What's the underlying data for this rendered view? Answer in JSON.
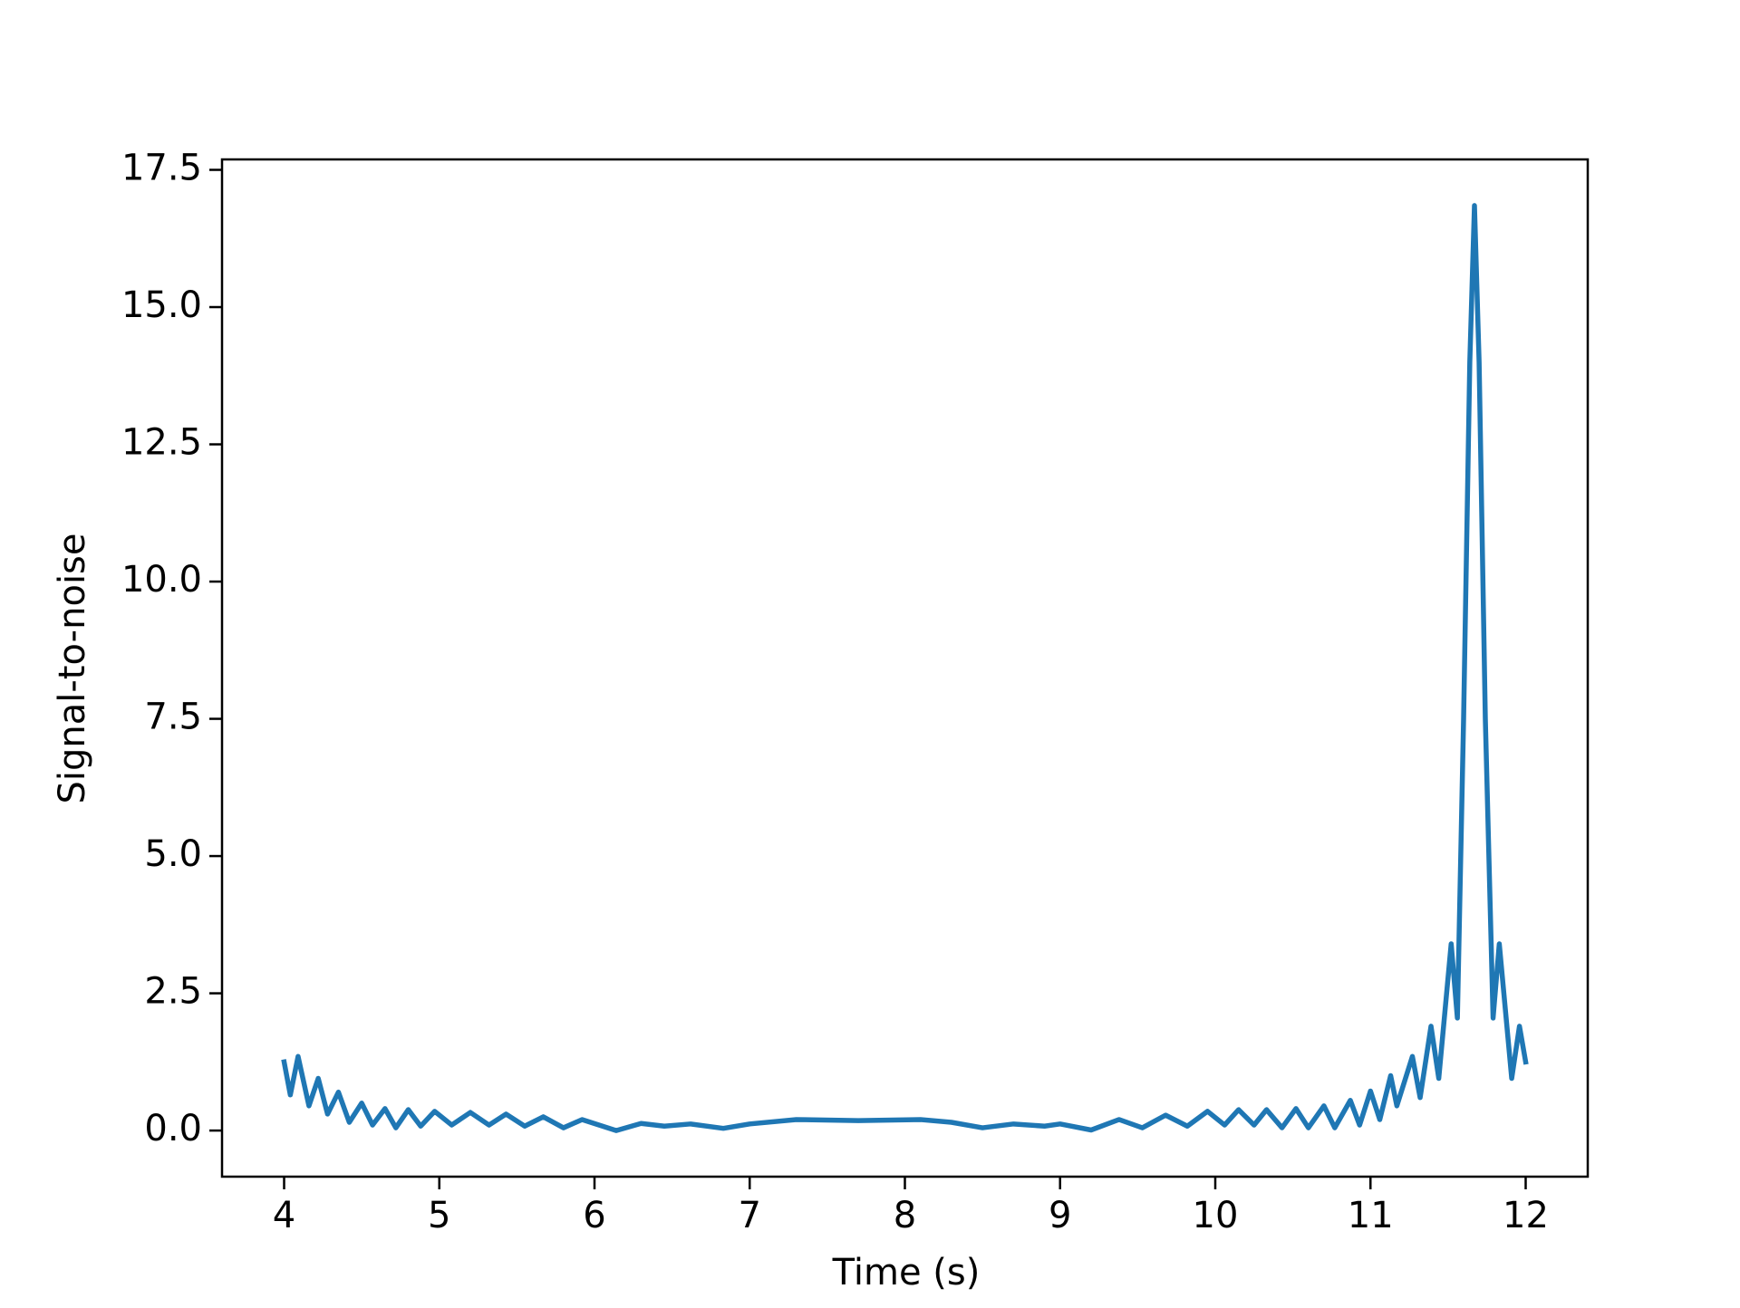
{
  "chart_data": {
    "type": "line",
    "x_label": "Time (s)",
    "y_label": "Signal-to-noise",
    "x": [
      4.0,
      4.04,
      4.09,
      4.16,
      4.22,
      4.28,
      4.35,
      4.42,
      4.5,
      4.57,
      4.65,
      4.72,
      4.8,
      4.88,
      4.97,
      5.08,
      5.2,
      5.32,
      5.43,
      5.55,
      5.67,
      5.8,
      5.92,
      6.14,
      6.3,
      6.45,
      6.62,
      6.83,
      7.0,
      7.3,
      7.7,
      8.1,
      8.3,
      8.5,
      8.7,
      8.9,
      9.0,
      9.2,
      9.38,
      9.53,
      9.68,
      9.82,
      9.95,
      10.06,
      10.15,
      10.25,
      10.33,
      10.43,
      10.52,
      10.6,
      10.7,
      10.77,
      10.87,
      10.93,
      11.0,
      11.06,
      11.13,
      11.17,
      11.27,
      11.32,
      11.39,
      11.44,
      11.52,
      11.56,
      11.6,
      11.64,
      11.67,
      11.7,
      11.74,
      11.79,
      11.83,
      11.91,
      11.96,
      12.0
    ],
    "series": [
      {
        "color": "#1f77b4",
        "values": [
          1.25,
          0.65,
          1.35,
          0.45,
          0.95,
          0.3,
          0.7,
          0.15,
          0.5,
          0.1,
          0.4,
          0.05,
          0.38,
          0.08,
          0.35,
          0.1,
          0.33,
          0.1,
          0.3,
          0.08,
          0.25,
          0.05,
          0.2,
          0.0,
          0.13,
          0.08,
          0.12,
          0.04,
          0.12,
          0.2,
          0.18,
          0.2,
          0.15,
          0.05,
          0.12,
          0.08,
          0.12,
          0.01,
          0.2,
          0.05,
          0.28,
          0.08,
          0.35,
          0.1,
          0.38,
          0.1,
          0.38,
          0.05,
          0.4,
          0.05,
          0.45,
          0.05,
          0.55,
          0.1,
          0.72,
          0.2,
          1.0,
          0.45,
          1.35,
          0.6,
          1.9,
          0.95,
          3.4,
          2.05,
          7.5,
          14.0,
          16.85,
          14.0,
          7.5,
          2.05,
          3.4,
          0.95,
          1.9,
          1.25
        ]
      }
    ],
    "xlim": [
      3.6,
      12.4
    ],
    "xticks": [
      4,
      5,
      6,
      7,
      8,
      9,
      10,
      11,
      12
    ],
    "ylim": [
      -0.84,
      17.69
    ],
    "yticks": [
      {
        "value": 0,
        "label": "0.0"
      },
      2.5,
      {
        "value": 5,
        "label": "5.0"
      },
      7.5,
      {
        "value": 10,
        "label": "10.0"
      },
      12.5,
      {
        "value": 15,
        "label": "15.0"
      },
      17.5
    ],
    "grid": false
  }
}
